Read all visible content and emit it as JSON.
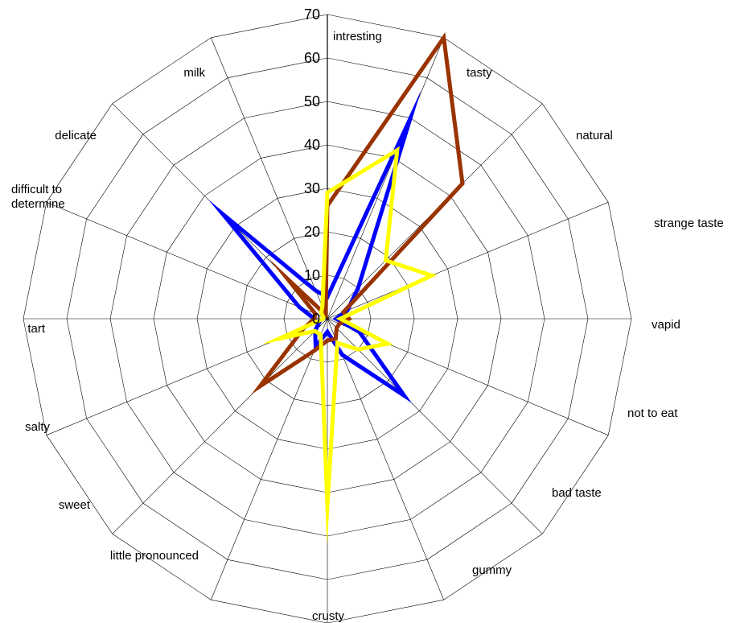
{
  "chart_data": {
    "type": "radar",
    "title": "",
    "categories": [
      "intresting",
      "tasty",
      "natural",
      "strange taste",
      "vapid",
      "not to eat",
      "bad taste",
      "gummy",
      "crusty",
      "little pronounced",
      "sweet",
      "salty",
      "tart",
      "difficult to determine",
      "delicate",
      "milk"
    ],
    "r_ticks": [
      "0",
      "10",
      "20",
      "30",
      "40",
      "50",
      "60",
      "70"
    ],
    "rlim": [
      0,
      70
    ],
    "grid": true,
    "legend": "none",
    "series": [
      {
        "color": "#0000ff",
        "values": [
          5,
          50,
          10,
          5,
          2,
          8,
          25,
          9,
          3,
          7,
          4,
          2,
          3,
          7,
          34,
          7
        ]
      },
      {
        "color": "#993300",
        "values": [
          26,
          70,
          44,
          4,
          5,
          3,
          3,
          5,
          5,
          8,
          22,
          6,
          3,
          3,
          13,
          1
        ]
      },
      {
        "color": "#ffff00",
        "values": [
          29,
          42,
          19,
          26,
          3,
          15,
          10,
          6,
          43,
          4,
          4,
          12,
          1,
          1,
          2,
          3
        ]
      }
    ]
  }
}
